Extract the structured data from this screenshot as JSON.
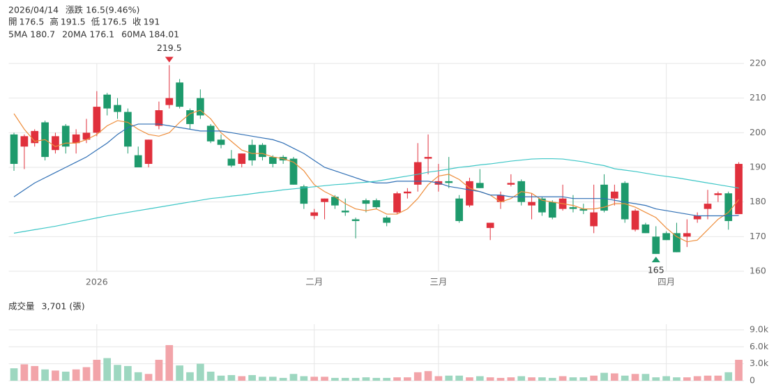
{
  "chart_data": [
    {
      "type": "candlestick",
      "info": {
        "date": "2026/04/14",
        "change_label": "漲跌",
        "change_text": "16.5(9.46%)",
        "fields": [
          {
            "label": "開",
            "value": 176.5
          },
          {
            "label": "高",
            "value": 191.5
          },
          {
            "label": "低",
            "value": 176.5
          },
          {
            "label": "收",
            "value": 191
          }
        ]
      },
      "categories": [
        null,
        null,
        null,
        null,
        null,
        null,
        null,
        null,
        "2026",
        null,
        null,
        null,
        null,
        null,
        null,
        null,
        null,
        null,
        null,
        null,
        null,
        null,
        null,
        null,
        null,
        null,
        null,
        null,
        null,
        "二月",
        null,
        null,
        null,
        null,
        null,
        null,
        null,
        null,
        null,
        null,
        null,
        "三月",
        null,
        null,
        null,
        null,
        null,
        null,
        null,
        null,
        null,
        null,
        null,
        null,
        null,
        null,
        null,
        null,
        null,
        null,
        null,
        null,
        null,
        "四月",
        null,
        null,
        null,
        null,
        null,
        null,
        null
      ],
      "open": [
        199.5,
        196,
        197,
        203,
        195,
        202,
        197,
        198,
        200,
        211,
        208,
        206,
        193.5,
        191,
        202,
        208,
        214.5,
        206.5,
        210,
        202,
        198,
        192.5,
        191,
        196.5,
        196.5,
        193,
        193,
        192.5,
        184.5,
        176,
        180,
        181.5,
        177.5,
        175,
        180.5,
        180.5,
        175.5,
        177,
        182.5,
        185,
        192.5,
        185,
        186,
        181,
        179,
        185.5,
        172.5,
        180,
        185,
        186,
        179,
        181,
        180,
        178,
        178.5,
        178,
        173,
        185,
        181,
        185.5,
        172,
        173.5,
        170,
        171,
        171,
        170,
        175,
        178,
        182,
        182.5,
        176.5
      ],
      "high": [
        200,
        199.5,
        201,
        203.5,
        200,
        202.5,
        201,
        204,
        212,
        211.5,
        210,
        207,
        196,
        198,
        209,
        219.5,
        215.5,
        207,
        212.5,
        202.5,
        199.5,
        195,
        194,
        198,
        197,
        193.5,
        193.5,
        193,
        185,
        178,
        181,
        182,
        181,
        175.5,
        181,
        181,
        176,
        183,
        184,
        197,
        199.5,
        191,
        193,
        182,
        187,
        189.5,
        174,
        183,
        188,
        186.5,
        182.5,
        181.5,
        180.5,
        185,
        182,
        179.5,
        185,
        188,
        185,
        186,
        178,
        174,
        173,
        171.5,
        174,
        175,
        177,
        183.5,
        183,
        183,
        191.5
      ],
      "low": [
        189,
        189.5,
        196,
        192,
        194,
        194,
        194,
        197,
        199,
        205,
        204,
        194,
        190,
        190,
        201,
        207,
        207,
        201,
        204,
        197,
        195.5,
        190,
        190,
        190.5,
        192,
        190,
        191,
        185,
        178,
        175,
        175,
        178,
        176,
        169.5,
        177,
        178,
        173,
        176.5,
        181,
        183,
        188,
        183,
        184,
        174,
        178.5,
        184,
        169,
        178,
        184.5,
        179,
        175,
        176,
        175,
        177.5,
        177,
        176.5,
        171,
        177,
        179,
        174,
        171.5,
        171,
        165,
        169,
        165.5,
        167,
        174,
        175,
        180,
        172,
        176.5
      ],
      "close": [
        191,
        199,
        200.5,
        193,
        199,
        196,
        199.5,
        200,
        207.5,
        207,
        206,
        196,
        190,
        198,
        206.5,
        210,
        207.5,
        202.5,
        205,
        197.5,
        196.5,
        190.5,
        194,
        192,
        193,
        191,
        192,
        185,
        179.5,
        177,
        181,
        179,
        177,
        174.5,
        179.5,
        178.5,
        174,
        182.5,
        183,
        191.5,
        193,
        186,
        185.5,
        174.5,
        186,
        184,
        174,
        182,
        185.5,
        180,
        180,
        177,
        175.5,
        181,
        178,
        177.5,
        177,
        177.5,
        183,
        175,
        177.5,
        171,
        165,
        169,
        165.5,
        171,
        176,
        179.5,
        182.5,
        174.5,
        191
      ],
      "series": [
        {
          "name": "5MA",
          "color": "#ee8e3c",
          "legend_value": 180.7,
          "values": [
            205.5,
            201,
            197.5,
            198,
            196,
            197,
            197,
            198,
            199.5,
            202,
            203.5,
            203,
            201,
            199.5,
            199,
            200,
            203,
            205.5,
            206.5,
            204,
            200,
            197.5,
            195,
            194,
            194,
            193,
            192.5,
            191.5,
            189,
            185,
            183,
            181.5,
            179.5,
            178,
            177.5,
            178,
            176.5,
            176.5,
            178,
            181,
            185,
            187.5,
            188,
            186.5,
            184,
            183,
            182,
            180,
            181,
            183,
            182.5,
            180.5,
            180,
            179.5,
            179,
            178,
            178,
            178.5,
            179.5,
            179.5,
            178.5,
            177,
            175.5,
            172.5,
            170,
            168.5,
            169,
            172,
            175,
            177,
            180.7
          ]
        },
        {
          "name": "20MA",
          "color": "#2f6fb5",
          "legend_value": 176.1,
          "values": [
            181.5,
            183.5,
            185.5,
            187,
            188.5,
            190,
            191.5,
            193,
            195,
            197,
            199.5,
            201.5,
            202.5,
            202.5,
            202.5,
            202,
            201.5,
            201,
            200.5,
            200.5,
            200.5,
            200,
            199.5,
            199,
            198.5,
            198,
            197,
            195.5,
            194,
            192,
            190,
            189,
            188,
            187,
            186,
            185.5,
            185.5,
            186,
            186,
            186,
            186,
            185.5,
            184.5,
            184,
            183.5,
            183,
            182,
            182,
            181.5,
            181.5,
            181.5,
            181.5,
            181.5,
            181.5,
            181,
            181,
            181,
            181,
            180.5,
            180,
            179.5,
            179,
            178,
            177.5,
            177,
            176.5,
            176,
            176,
            176,
            176,
            176.1
          ]
        },
        {
          "name": "60MA",
          "color": "#3cc6c6",
          "legend_value": 184.01,
          "values": [
            171,
            171.5,
            172,
            172.5,
            173,
            173.6,
            174.2,
            174.8,
            175.4,
            176,
            176.5,
            177,
            177.5,
            178,
            178.5,
            179,
            179.5,
            180,
            180.5,
            181,
            181.3,
            181.7,
            182,
            182.4,
            182.8,
            183.1,
            183.5,
            183.8,
            184.1,
            184.4,
            184.7,
            185,
            185.2,
            185.5,
            185.7,
            186,
            186.5,
            187,
            187.5,
            188,
            188.6,
            189,
            189.5,
            190,
            190.3,
            190.7,
            191,
            191.4,
            191.8,
            192.1,
            192.4,
            192.5,
            192.5,
            192.4,
            192,
            191.6,
            191,
            190.5,
            189.6,
            189.2,
            188.8,
            188.3,
            187.8,
            187.4,
            187,
            186.5,
            186,
            185.5,
            185,
            184.5,
            184.01
          ]
        }
      ],
      "ylim": [
        160,
        220
      ],
      "yticks": [
        160,
        170,
        180,
        190,
        200,
        210,
        220
      ],
      "grid": true,
      "up_color": "#e0303c",
      "down_color": "#1e9a6c",
      "high_mark": 219.5,
      "low_mark": 165
    },
    {
      "type": "bar",
      "title": "成交量",
      "last_volume": {
        "value": 3701,
        "label": "3,701"
      },
      "unit": "(張)",
      "values": [
        2200,
        2900,
        2600,
        2000,
        1800,
        1600,
        2000,
        2400,
        3700,
        4000,
        2800,
        2600,
        1500,
        1200,
        3700,
        6300,
        2700,
        1500,
        3000,
        1600,
        900,
        1000,
        800,
        1000,
        700,
        700,
        500,
        1200,
        800,
        700,
        700,
        500,
        500,
        500,
        600,
        500,
        500,
        600,
        600,
        1500,
        1700,
        800,
        900,
        900,
        600,
        800,
        600,
        500,
        600,
        800,
        600,
        600,
        500,
        800,
        600,
        600,
        900,
        1400,
        1300,
        900,
        1200,
        1200,
        600,
        800,
        600,
        600,
        800,
        900,
        900,
        1500,
        3701
      ],
      "ylim": [
        0,
        9000
      ],
      "yticks": [
        0,
        {
          "value": 3000,
          "label": "3.0k"
        },
        {
          "value": 6000,
          "label": "6.0k"
        },
        {
          "value": 9000,
          "label": "9.0k"
        }
      ],
      "grid": true,
      "up_color": "#f2a4a9",
      "down_color": "#9dd7c0"
    }
  ]
}
